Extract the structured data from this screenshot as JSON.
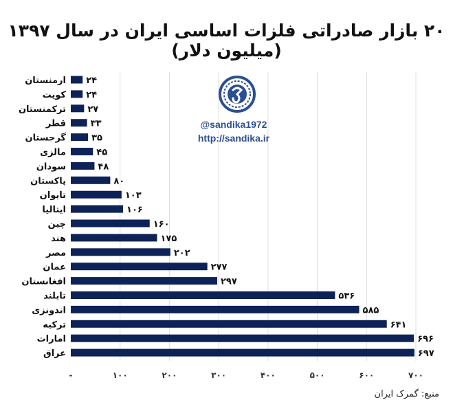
{
  "chart_data": {
    "type": "bar",
    "orientation": "horizontal",
    "title": "۲۰ بازار صادراتی فلزات اساسی ایران در سال ۱۳۹۷ (میلیون دلار)",
    "categories": [
      "ارمنستان",
      "کویت",
      "ترکمنستان",
      "قطر",
      "گرجستان",
      "مالزی",
      "سودان",
      "پاکستان",
      "تایوان",
      "ایتالیا",
      "چین",
      "هند",
      "مصر",
      "عمان",
      "افغانستان",
      "تایلند",
      "اندونزی",
      "ترکیه",
      "امارات",
      "عراق"
    ],
    "values": [
      24,
      24,
      27,
      33,
      35,
      45,
      48,
      80,
      103,
      106,
      160,
      175,
      202,
      277,
      297,
      536,
      585,
      641,
      696,
      697
    ],
    "value_labels": [
      "۲۴",
      "۲۴",
      "۲۷",
      "۳۳",
      "۳۵",
      "۴۵",
      "۴۸",
      "۸۰",
      "۱۰۳",
      "۱۰۶",
      "۱۶۰",
      "۱۷۵",
      "۲۰۲",
      "۲۷۷",
      "۲۹۷",
      "۵۳۶",
      "۵۸۵",
      "۶۴۱",
      "۶۹۶",
      "۶۹۷"
    ],
    "xlim": [
      0,
      700
    ],
    "x_ticks": [
      0,
      100,
      200,
      300,
      400,
      500,
      600,
      700
    ],
    "x_tick_labels": [
      "-",
      "۱۰۰",
      "۲۰۰",
      "۳۰۰",
      "۴۰۰",
      "۵۰۰",
      "۶۰۰",
      "۷۰۰"
    ],
    "grid": "vertical",
    "bar_color": "#0d2257",
    "grid_color": "#dddddd"
  },
  "watermark": {
    "handle": "@sandika1972",
    "url": "http://sandika.ir",
    "color": "#2b4f93"
  },
  "source": "منبع: گمرک ایران"
}
